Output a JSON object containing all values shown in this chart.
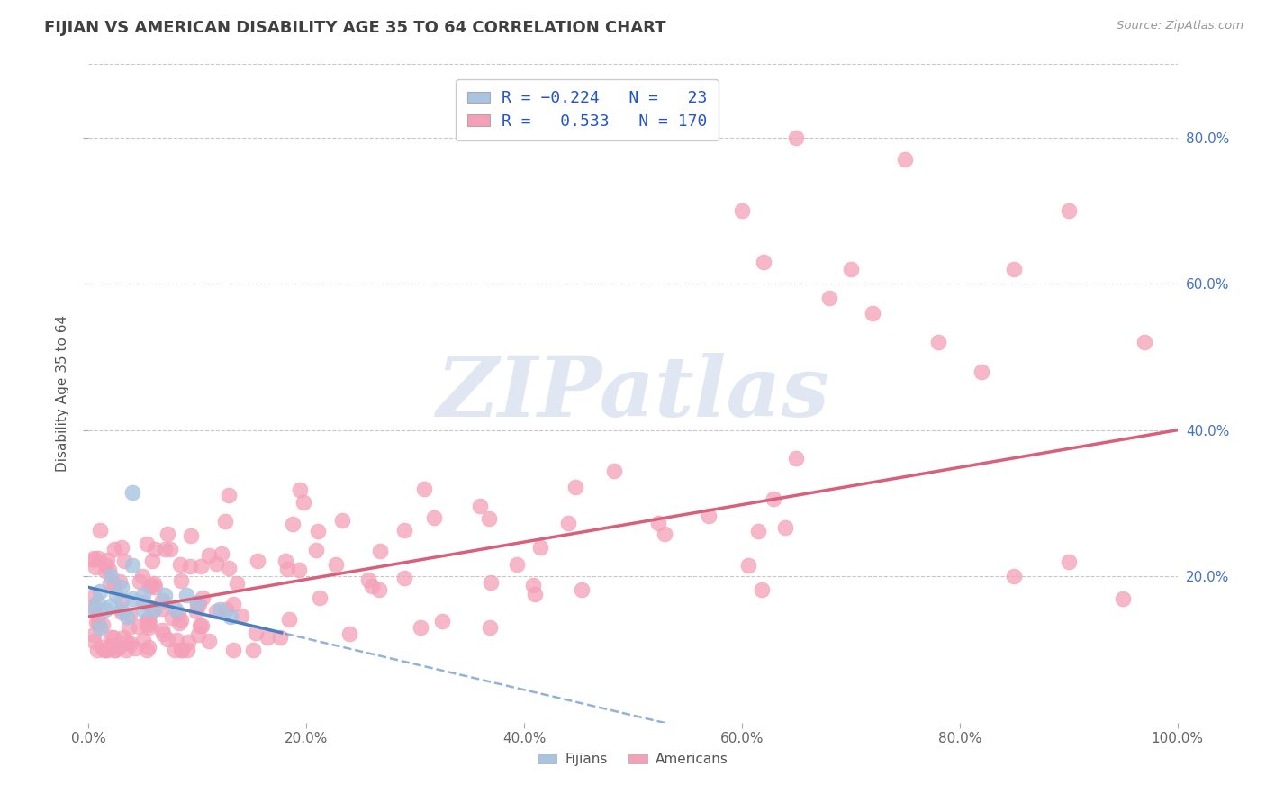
{
  "title": "FIJIAN VS AMERICAN DISABILITY AGE 35 TO 64 CORRELATION CHART",
  "source_text": "Source: ZipAtlas.com",
  "ylabel": "Disability Age 35 to 64",
  "x_min": 0.0,
  "x_max": 1.0,
  "y_min": 0.0,
  "y_max": 0.9,
  "fijian_color": "#a8c4e0",
  "american_color": "#f4a0b8",
  "fijian_line_color": "#4a7fc0",
  "american_line_color": "#d9607a",
  "fijian_R": -0.224,
  "fijian_N": 23,
  "american_R": 0.533,
  "american_N": 170,
  "background_color": "#ffffff",
  "grid_color": "#c8c8c8",
  "title_color": "#404040",
  "legend_text_color": "#2255cc",
  "watermark_color": "#c8d4e8",
  "x_ticks": [
    0.0,
    0.2,
    0.4,
    0.6,
    0.8,
    1.0
  ],
  "x_tick_labels": [
    "0.0%",
    "20.0%",
    "40.0%",
    "60.0%",
    "80.0%",
    "100.0%"
  ],
  "y_ticks": [
    0.2,
    0.4,
    0.6,
    0.8
  ],
  "y_tick_labels": [
    "20.0%",
    "40.0%",
    "60.0%",
    "80.0%"
  ],
  "am_intercept": 0.145,
  "am_slope": 0.255,
  "fij_intercept": 0.185,
  "fij_slope": -0.35
}
